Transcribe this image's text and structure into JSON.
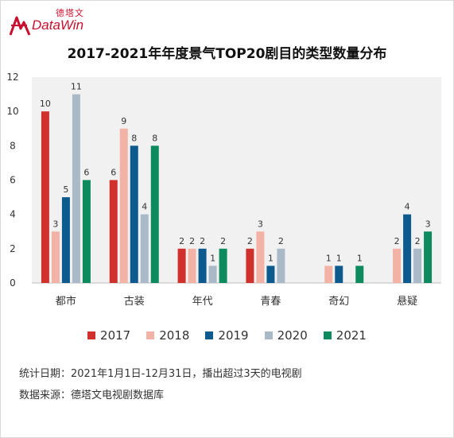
{
  "brand": {
    "cn": "德塔文",
    "en": "DataWin",
    "color": "#c8102e"
  },
  "footnotes": {
    "stat_date": "统计日期：2021年1月1日-12月31日，播出超过3天的电视剧",
    "source": "数据来源：德塔文电视剧数据库"
  },
  "chart_data": {
    "type": "bar",
    "title": "2017-2021年年度景气TOP20剧目的类型数量分布",
    "xlabel": "",
    "ylabel": "",
    "ylim": [
      0,
      12
    ],
    "yticks": [
      "0",
      "2",
      "4",
      "6",
      "8",
      "10",
      "12"
    ],
    "grid": false,
    "legend_position": "bottom",
    "categories": [
      "都市",
      "古装",
      "年代",
      "青春",
      "奇幻",
      "悬疑"
    ],
    "series": [
      {
        "name": "2017",
        "color": "#d0312d",
        "values": [
          10,
          6,
          2,
          2,
          0,
          0
        ]
      },
      {
        "name": "2018",
        "color": "#f2b3a6",
        "values": [
          3,
          9,
          2,
          3,
          1,
          2
        ]
      },
      {
        "name": "2019",
        "color": "#0d5a8f",
        "values": [
          5,
          8,
          2,
          1,
          1,
          4
        ]
      },
      {
        "name": "2020",
        "color": "#a9b9c8",
        "values": [
          11,
          4,
          1,
          2,
          0,
          2
        ]
      },
      {
        "name": "2021",
        "color": "#0e8a5f",
        "values": [
          6,
          8,
          2,
          0,
          1,
          3
        ]
      }
    ]
  }
}
